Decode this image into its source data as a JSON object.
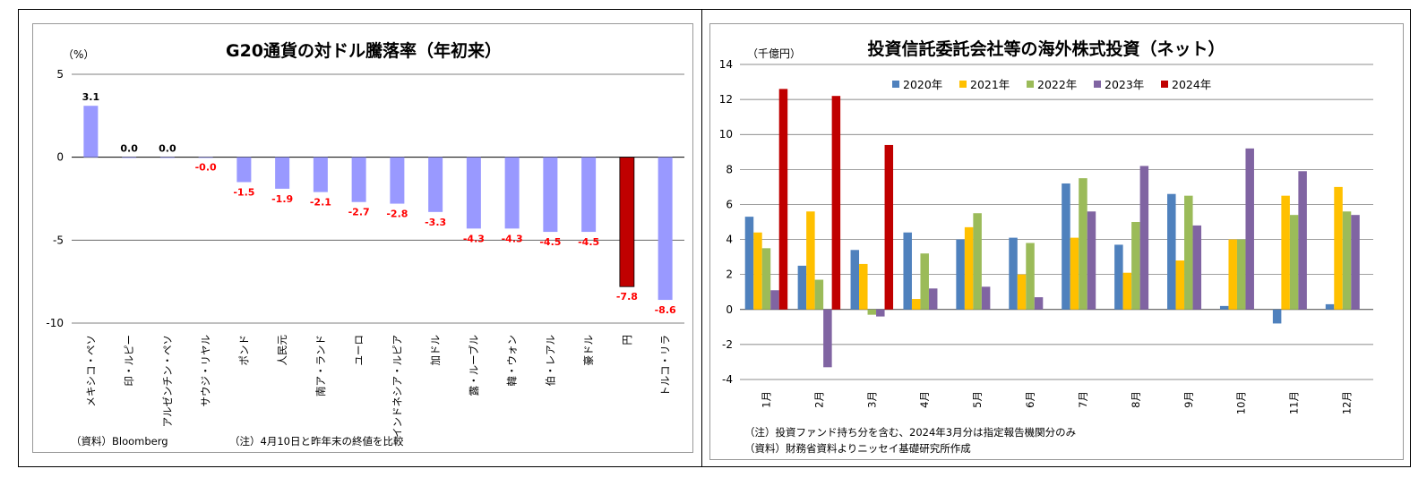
{
  "left_panel": {
    "note_source": "（資料）Bloomberg",
    "note_remark": "（注）4月10日と昨年末の終値を比較"
  },
  "right_panel": {
    "note_line1": "（注）投資ファンド持ち分を含む、2024年3月分は指定報告機関分のみ",
    "note_line2": "（資料）財務省資料よりニッセイ基礎研究所作成"
  },
  "chart_data": [
    {
      "type": "bar",
      "title": "G20通貨の対ドル騰落率（年初来）",
      "ylabel": "（%）",
      "ylim": [
        -10,
        5
      ],
      "yticks": [
        5,
        0,
        -5,
        -10
      ],
      "grid": true,
      "categories": [
        "メキシコ・ペソ",
        "印・ルピー",
        "アルゼンチン・ペソ",
        "サウジ・リヤル",
        "ポンド",
        "人民元",
        "南ア・ランド",
        "ユーロ",
        "インドネシア・ルピア",
        "加ドル",
        "露・ルーブル",
        "韓・ウォン",
        "伯・レアル",
        "豪ドル",
        "円",
        "トルコ・リラ"
      ],
      "values": [
        3.1,
        0.0,
        0.0,
        -0.0,
        -1.5,
        -1.9,
        -2.1,
        -2.7,
        -2.8,
        -3.3,
        -4.3,
        -4.3,
        -4.5,
        -4.5,
        -7.8,
        -8.6
      ],
      "value_labels": [
        "3.1",
        "0.0",
        "0.0",
        "-0.0",
        "-1.5",
        "-1.9",
        "-2.1",
        "-2.7",
        "-2.8",
        "-3.3",
        "-4.3",
        "-4.3",
        "-4.5",
        "-4.5",
        "-7.8",
        "-8.6"
      ],
      "colors": {
        "bar": "#9999ff",
        "highlight": "#c00000",
        "positive_label": "#000000",
        "negative_label": "#ff0000"
      },
      "highlight_category": "円"
    },
    {
      "type": "bar",
      "title": "投資信託委託会社等の海外株式投資（ネット）",
      "ylabel": "（千億円）",
      "ylim": [
        -4,
        14
      ],
      "yticks": [
        14,
        12,
        10,
        8,
        6,
        4,
        2,
        0,
        -2,
        -4
      ],
      "grid": true,
      "legend": "top",
      "categories": [
        "1月",
        "2月",
        "3月",
        "4月",
        "5月",
        "6月",
        "7月",
        "8月",
        "9月",
        "10月",
        "11月",
        "12月"
      ],
      "series": [
        {
          "name": "2020年",
          "color": "#4f81bd",
          "values": [
            5.3,
            2.5,
            3.4,
            4.4,
            4.0,
            4.1,
            7.2,
            3.7,
            6.6,
            0.2,
            -0.8,
            0.3
          ]
        },
        {
          "name": "2021年",
          "color": "#ffc000",
          "values": [
            4.4,
            5.6,
            2.6,
            0.6,
            4.7,
            2.0,
            4.1,
            2.1,
            2.8,
            4.0,
            6.5,
            7.0
          ]
        },
        {
          "name": "2022年",
          "color": "#9bbb59",
          "values": [
            3.5,
            1.7,
            -0.3,
            3.2,
            5.5,
            3.8,
            7.5,
            5.0,
            6.5,
            4.0,
            5.4,
            5.6
          ]
        },
        {
          "name": "2023年",
          "color": "#8064a2",
          "values": [
            1.1,
            -3.3,
            -0.4,
            1.2,
            1.3,
            0.7,
            5.6,
            8.2,
            4.8,
            9.2,
            7.9,
            5.4
          ]
        },
        {
          "name": "2024年",
          "color": "#c00000",
          "values": [
            12.6,
            12.2,
            9.4,
            null,
            null,
            null,
            null,
            null,
            null,
            null,
            null,
            null
          ]
        }
      ]
    }
  ]
}
